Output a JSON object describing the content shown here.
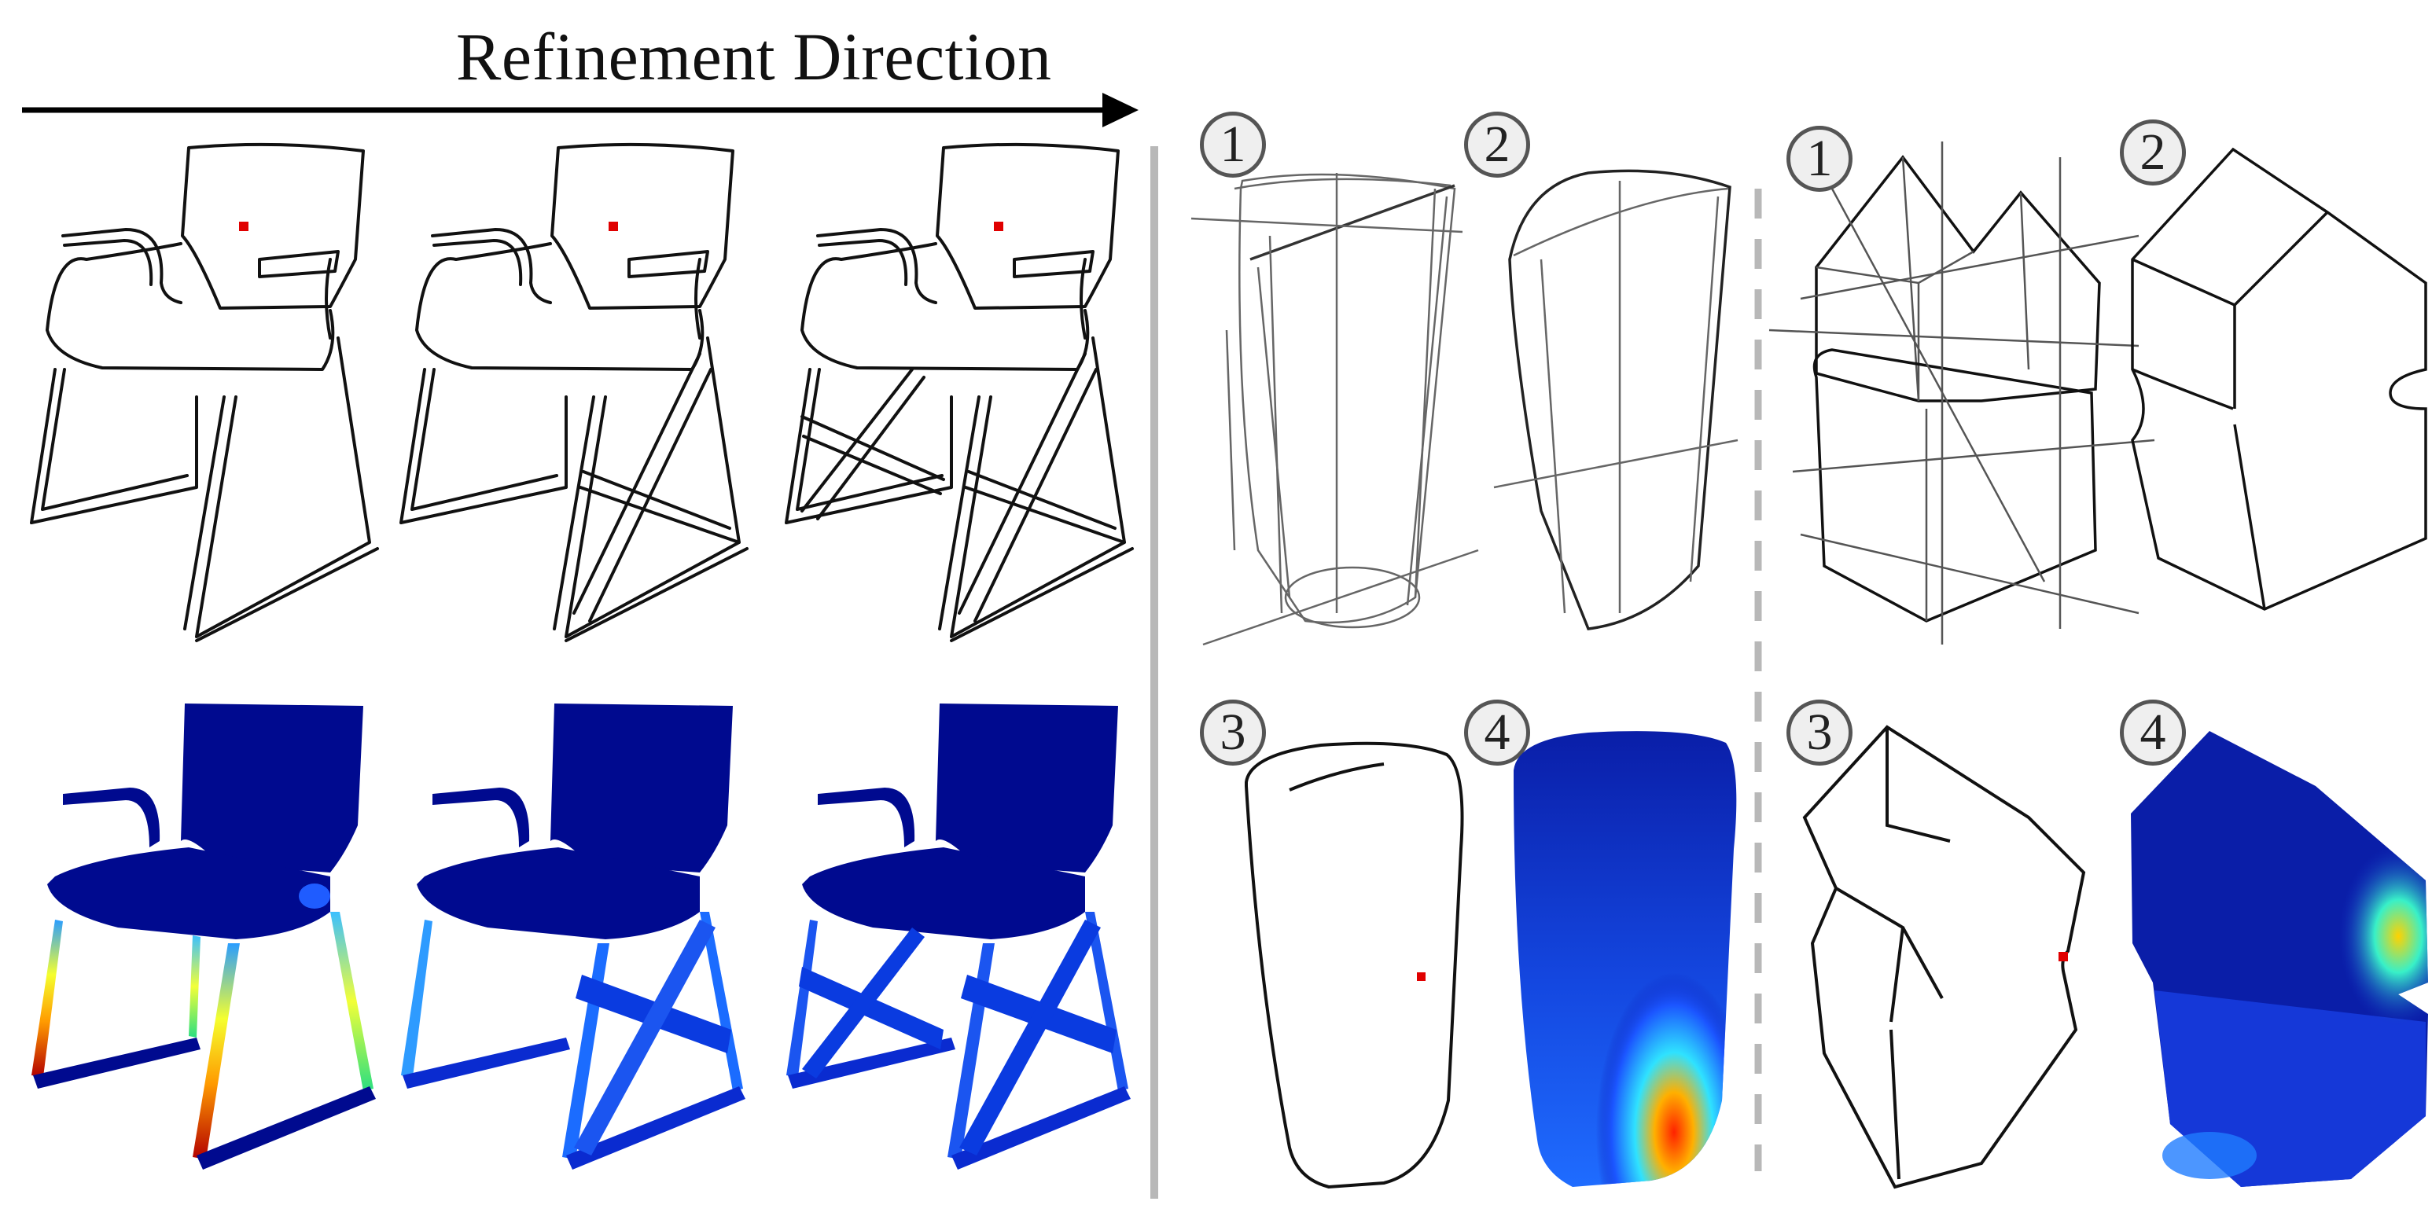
{
  "heading": "Refinement Direction",
  "steps": {
    "s1": "1",
    "s2": "2",
    "s3": "3",
    "s4": "4"
  },
  "colors": {
    "line": "#111111",
    "sketch": "#777777",
    "marker": "#e00000",
    "divider": "#b8b8b8",
    "heat_low": "#000a8f",
    "heat_mid": "#1f5cff",
    "heat_high": "#ff2a00"
  }
}
